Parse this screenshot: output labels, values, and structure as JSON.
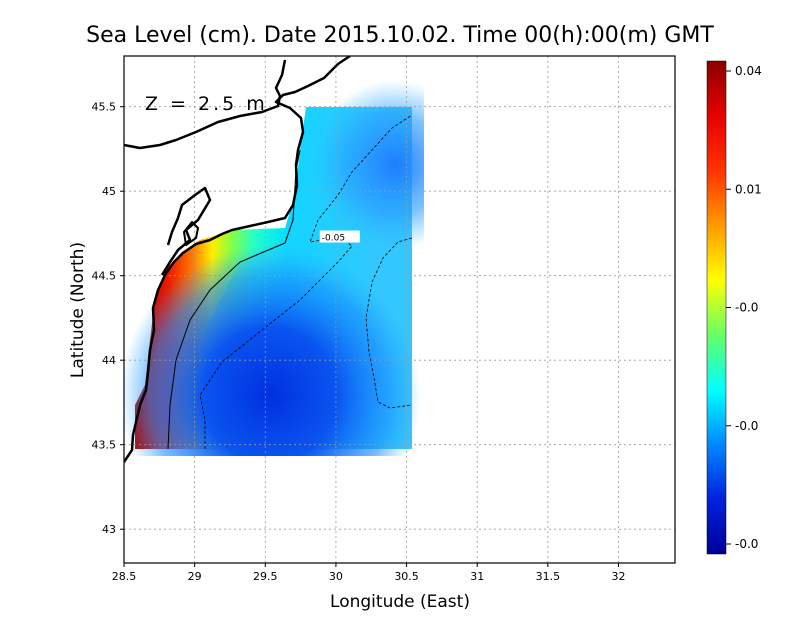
{
  "chart_data": {
    "type": "heatmap",
    "title": "Sea Level (cm). Date 2015.10.02. Time 00(h):00(m) GMT",
    "xlabel": "Longitude (East)",
    "ylabel": "Latitude (North)",
    "annotation": "Z = 2.5 m",
    "xlim": [
      28.5,
      32.4
    ],
    "ylim": [
      42.8,
      45.8
    ],
    "x_ticks": [
      28.5,
      29,
      29.5,
      30,
      30.5,
      31,
      31.5,
      32
    ],
    "x_tick_labels": [
      "28.5",
      "29",
      "29.5",
      "30",
      "30.5",
      "31",
      "31.5",
      "32"
    ],
    "y_ticks": [
      43,
      43.5,
      44,
      44.5,
      45,
      45.5
    ],
    "y_tick_labels": [
      "43",
      "43.5",
      "44",
      "44.5",
      "45",
      "45.5"
    ],
    "grid": true,
    "data_extent": {
      "lon": [
        28.6,
        30.55
      ],
      "lat": [
        43.5,
        45.5
      ]
    },
    "contour_labels": [
      {
        "text": "-0.05",
        "lon": 29.9,
        "lat": 44.72
      }
    ],
    "colorbar": {
      "tick_labels": [
        "0.04",
        "0.01",
        "-0.0",
        "-0.0",
        "-0.0"
      ],
      "colors": [
        "#8b0000",
        "#e60000",
        "#ff3300",
        "#ff9900",
        "#ffff00",
        "#66ff66",
        "#00ffff",
        "#0088ff",
        "#0022dd",
        "#000099"
      ]
    }
  }
}
